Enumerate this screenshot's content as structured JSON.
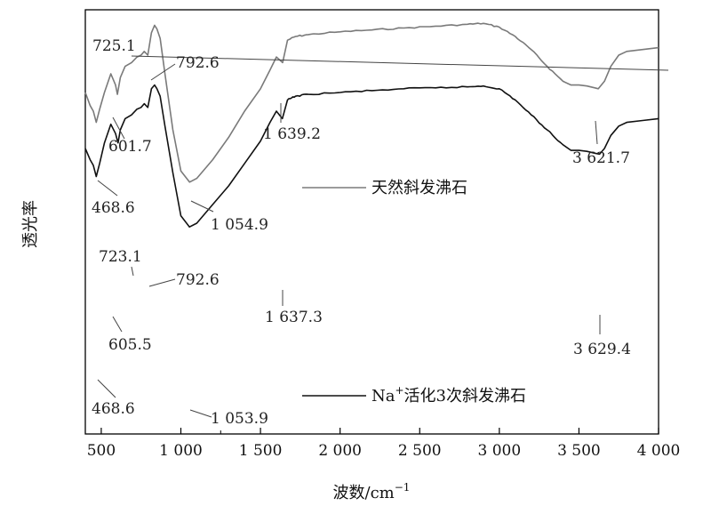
{
  "chart_data": {
    "type": "line",
    "xlabel": "波数/cm",
    "xlabel_sup": "−1",
    "ylabel": "透光率",
    "xlim": [
      400,
      4000
    ],
    "xticks": [
      {
        "value": 500,
        "label": "500"
      },
      {
        "value": 1000,
        "label": "1 000"
      },
      {
        "value": 1500,
        "label": "1 500"
      },
      {
        "value": 2000,
        "label": "2 000"
      },
      {
        "value": 2500,
        "label": "2 500"
      },
      {
        "value": 3000,
        "label": "3 000"
      },
      {
        "value": 3500,
        "label": "3 500"
      },
      {
        "value": 4000,
        "label": "4 000"
      }
    ],
    "legend_position": "inside-middle",
    "series": [
      {
        "name": "天然斜发沸石",
        "name_prefix": "",
        "name_sup": "",
        "color": "#7a7a7a",
        "x": [
          400,
          430,
          450,
          468.6,
          490,
          520,
          560,
          590,
          601.7,
          620,
          650,
          690,
          725.1,
          750,
          770,
          792.6,
          815,
          835,
          850,
          870,
          900,
          950,
          1000,
          1054.9,
          1100,
          1200,
          1300,
          1400,
          1500,
          1560,
          1600,
          1639.2,
          1670,
          1720,
          1800,
          2000,
          2200,
          2400,
          2600,
          2800,
          2900,
          3000,
          3100,
          3200,
          3300,
          3400,
          3450,
          3500,
          3550,
          3600,
          3621.7,
          3660,
          3700,
          3750,
          3800,
          3900,
          4000
        ],
        "y": [
          60,
          53,
          50,
          44,
          51,
          60,
          70,
          64,
          59,
          68,
          74,
          76,
          79,
          80,
          82,
          80,
          92,
          96,
          94,
          89,
          70,
          40,
          18,
          12,
          14,
          24,
          36,
          50,
          62,
          72,
          79,
          76,
          88,
          90,
          91,
          92.5,
          93.5,
          94.5,
          95.5,
          96.5,
          97,
          95,
          90,
          83,
          74,
          66,
          64,
          64,
          63.5,
          62.5,
          62,
          66,
          74,
          80,
          82,
          83,
          84
        ]
      },
      {
        "name": "活化3次斜发沸石",
        "name_prefix": "Na",
        "name_sup": "+",
        "color": "#111111",
        "x": [
          400,
          430,
          450,
          468.6,
          490,
          520,
          560,
          590,
          605.5,
          620,
          650,
          690,
          723.1,
          750,
          770,
          792.6,
          815,
          835,
          850,
          870,
          900,
          950,
          1000,
          1053.9,
          1100,
          1200,
          1300,
          1400,
          1500,
          1560,
          1600,
          1637.3,
          1670,
          1720,
          1800,
          2000,
          2200,
          2400,
          2600,
          2800,
          2900,
          3000,
          3100,
          3200,
          3300,
          3400,
          3450,
          3500,
          3550,
          3600,
          3629.4,
          3660,
          3700,
          3750,
          3800,
          3900,
          4000
        ],
        "y": [
          30,
          24,
          21,
          15,
          22,
          33,
          43,
          38,
          33,
          40,
          46,
          48,
          51,
          52,
          54,
          52,
          62,
          64,
          62,
          58,
          42,
          17,
          -6,
          -12,
          -10,
          0,
          10,
          22,
          34,
          44,
          50,
          46,
          56,
          58,
          59,
          60,
          61,
          62,
          62.5,
          63,
          63.5,
          62,
          56,
          48,
          40,
          32,
          29,
          29,
          28.5,
          27.5,
          27,
          30,
          37,
          42,
          44,
          45,
          46
        ]
      }
    ],
    "annotations": [
      {
        "text": "725.1",
        "series": 0
      },
      {
        "text": "792.6",
        "series": 0
      },
      {
        "text": "601.7",
        "series": 0
      },
      {
        "text": "468.6",
        "series": 0
      },
      {
        "text": "1 054.9",
        "series": 0
      },
      {
        "text": "1 639.2",
        "series": 0
      },
      {
        "text": "3 621.7",
        "series": 0
      },
      {
        "text": "723.1",
        "series": 1
      },
      {
        "text": "792.6",
        "series": 1
      },
      {
        "text": "605.5",
        "series": 1
      },
      {
        "text": "468.6",
        "series": 1
      },
      {
        "text": "1 053.9",
        "series": 1
      },
      {
        "text": "1 637.3",
        "series": 1
      },
      {
        "text": "3 629.4",
        "series": 1
      }
    ]
  }
}
